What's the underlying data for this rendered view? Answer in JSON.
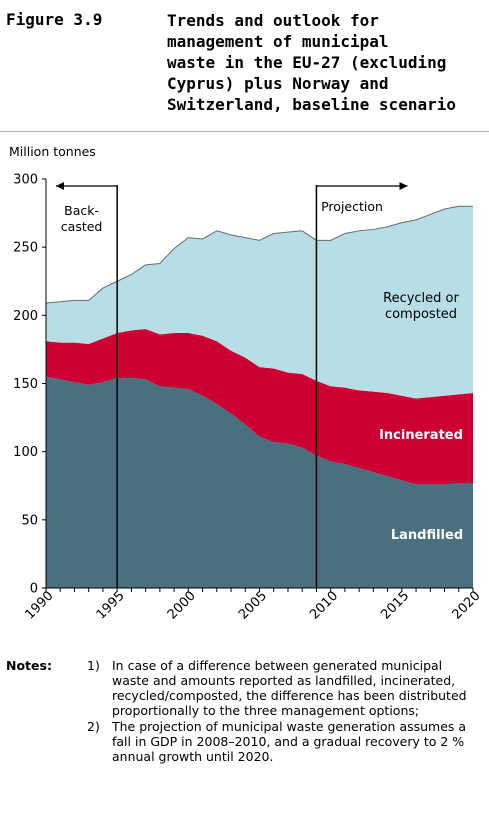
{
  "figure": {
    "label": "Figure 3.9",
    "title_lines": [
      "Trends and outlook for",
      "management of municipal",
      "waste in the EU-27 (excluding",
      "Cyprus) plus Norway and",
      "Switzerland, baseline scenario"
    ]
  },
  "chart_data": {
    "type": "area",
    "stacked": true,
    "ylabel": "Million tonnes",
    "xlim": [
      1990,
      2020
    ],
    "ylim": [
      0,
      300
    ],
    "xticks": [
      1990,
      1995,
      2000,
      2005,
      2010,
      2015,
      2020
    ],
    "yticks": [
      0,
      50,
      100,
      150,
      200,
      250,
      300
    ],
    "x": [
      1990,
      1991,
      1992,
      1993,
      1994,
      1995,
      1996,
      1997,
      1998,
      1999,
      2000,
      2001,
      2002,
      2003,
      2004,
      2005,
      2006,
      2007,
      2008,
      2009,
      2010,
      2011,
      2012,
      2013,
      2014,
      2015,
      2016,
      2017,
      2018,
      2019,
      2020
    ],
    "series": [
      {
        "name": "Landfilled",
        "color": "#4a7080",
        "values": [
          155,
          153,
          151,
          149,
          151,
          154,
          154,
          153,
          148,
          147,
          146,
          141,
          135,
          128,
          120,
          111,
          107,
          106,
          103,
          97,
          93,
          91,
          88,
          85,
          82,
          79,
          76,
          76,
          76,
          77,
          77
        ]
      },
      {
        "name": "Incinerated",
        "color": "#cc0033",
        "values": [
          26,
          27,
          29,
          30,
          32,
          33,
          35,
          37,
          38,
          40,
          41,
          44,
          46,
          46,
          49,
          51,
          54,
          52,
          54,
          55,
          55,
          56,
          57,
          59,
          61,
          62,
          63,
          64,
          65,
          65,
          66
        ]
      },
      {
        "name": "Recycled or composted",
        "color": "#b7dde6",
        "values": [
          28,
          30,
          31,
          32,
          37,
          38,
          41,
          47,
          52,
          62,
          70,
          71,
          81,
          85,
          88,
          93,
          99,
          103,
          105,
          103,
          107,
          113,
          117,
          119,
          122,
          127,
          131,
          134,
          137,
          138,
          137
        ]
      }
    ],
    "series_labels": {
      "recycled_lines": [
        "Recycled or",
        "composted"
      ],
      "incinerated": "Incinerated",
      "landfilled": "Landfilled"
    },
    "annotations": {
      "backcasted_lines": [
        "Back-",
        "casted"
      ],
      "backcasted_range": [
        1990,
        1995
      ],
      "projection": "Projection",
      "projection_start": 2009
    },
    "grid": false,
    "legend": "none"
  },
  "notes": {
    "label": "Notes:",
    "items": [
      {
        "num": "1)",
        "text": "In case of a difference between generated municipal waste and amounts reported as landfilled, incinerated, recycled/composted, the difference has been distributed proportionally to the three management options;"
      },
      {
        "num": "2)",
        "text": "The projection of municipal waste generation assumes a fall in GDP in 2008–2010, and a gradual recovery to 2 % annual growth until 2020."
      }
    ]
  }
}
